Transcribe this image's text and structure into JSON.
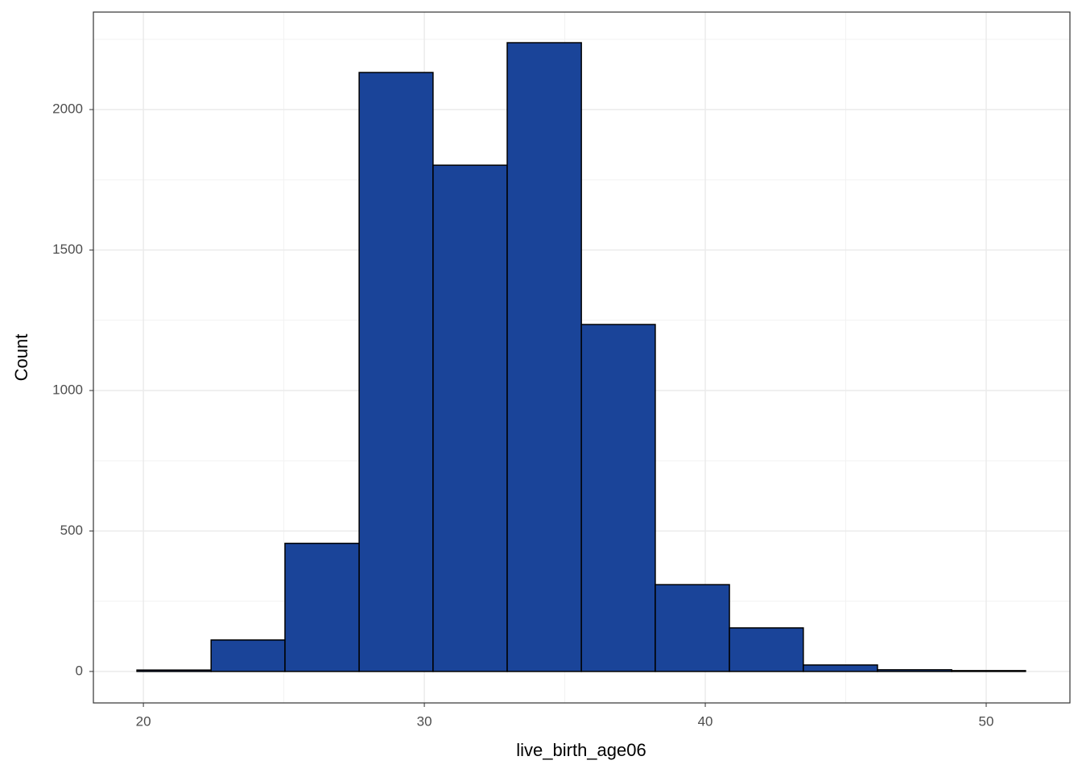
{
  "chart_data": {
    "type": "histogram",
    "xlabel": "live_birth_age06",
    "ylabel": "Count",
    "bins": [
      19.77,
      22.41,
      25.04,
      27.68,
      30.31,
      32.95,
      35.59,
      38.22,
      40.86,
      43.49,
      46.13,
      48.77,
      51.4
    ],
    "values": [
      5,
      112,
      456,
      2132,
      1802,
      2238,
      1235,
      309,
      155,
      23,
      6,
      3
    ],
    "color": "#1a4499",
    "edgecolor": "#000000",
    "xlim": [
      18.22,
      52.98
    ],
    "ylim": [
      -112,
      2347
    ],
    "xticks": [
      20,
      30,
      40,
      50
    ],
    "yticks": [
      0,
      500,
      1000,
      1500,
      2000
    ],
    "xminor": [
      25,
      35,
      45
    ],
    "yminor": [
      250,
      750,
      1250,
      1750,
      2250
    ],
    "grid": true
  }
}
